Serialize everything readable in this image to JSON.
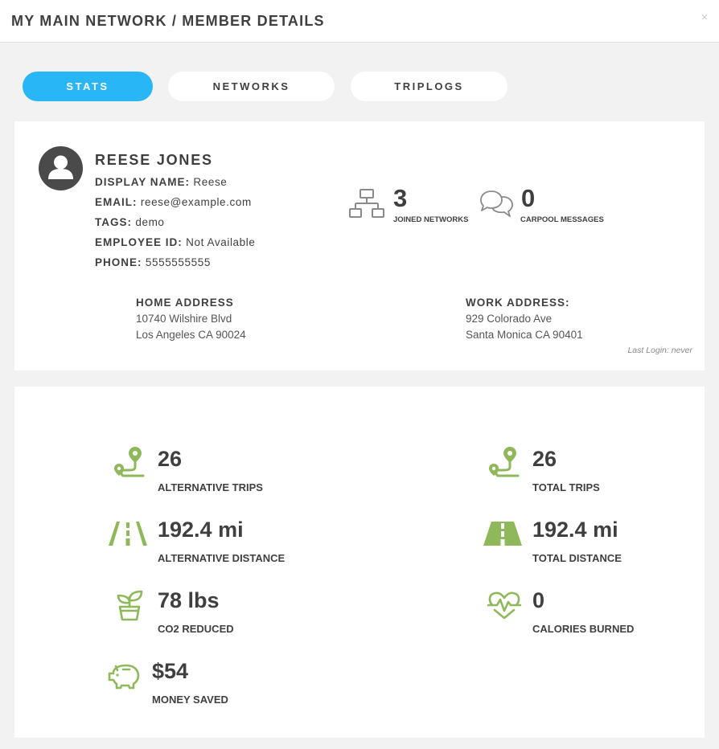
{
  "header": {
    "title": "MY MAIN NETWORK / MEMBER DETAILS",
    "close_icon": "×"
  },
  "tabs": [
    {
      "label": "STATS",
      "active": true
    },
    {
      "label": "NETWORKS",
      "active": false
    },
    {
      "label": "TRIPLOGS",
      "active": false
    }
  ],
  "profile": {
    "name": "REESE JONES",
    "fields": [
      {
        "label": "DISPLAY NAME:",
        "value": "Reese"
      },
      {
        "label": "EMAIL:",
        "value": "reese@example.com"
      },
      {
        "label": "TAGS:",
        "value": "demo"
      },
      {
        "label": "EMPLOYEE ID:",
        "value": "Not Available"
      },
      {
        "label": "PHONE:",
        "value": "5555555555"
      }
    ],
    "joined_networks": {
      "value": "3",
      "label": "JOINED NETWORKS",
      "icon": "network-icon"
    },
    "carpool_messages": {
      "value": "0",
      "label": "CARPOOL MESSAGES",
      "icon": "chat-icon"
    },
    "home_address": {
      "label": "HOME ADDRESS",
      "line1": "10740 Wilshire Blvd",
      "line2": "Los Angeles CA 90024"
    },
    "work_address": {
      "label": "WORK ADDRESS:",
      "line1": "929 Colorado Ave",
      "line2": "Santa Monica CA 90401"
    },
    "last_login": "Last Login: never"
  },
  "stats": {
    "accent_color": "#8fb85a",
    "items": [
      {
        "value": "26",
        "label": "ALTERNATIVE TRIPS",
        "icon": "route-icon"
      },
      {
        "value": "26",
        "label": "TOTAL TRIPS",
        "icon": "route-icon"
      },
      {
        "value": "192.4 mi",
        "label": "ALTERNATIVE DISTANCE",
        "icon": "road-outline-icon"
      },
      {
        "value": "192.4 mi",
        "label": "TOTAL DISTANCE",
        "icon": "road-filled-icon"
      },
      {
        "value": "78 lbs",
        "label": "CO2 REDUCED",
        "icon": "plant-icon"
      },
      {
        "value": "0",
        "label": "CALORIES BURNED",
        "icon": "heartbeat-icon"
      },
      {
        "value": "$54",
        "label": "MONEY SAVED",
        "icon": "piggy-bank-icon"
      }
    ]
  }
}
